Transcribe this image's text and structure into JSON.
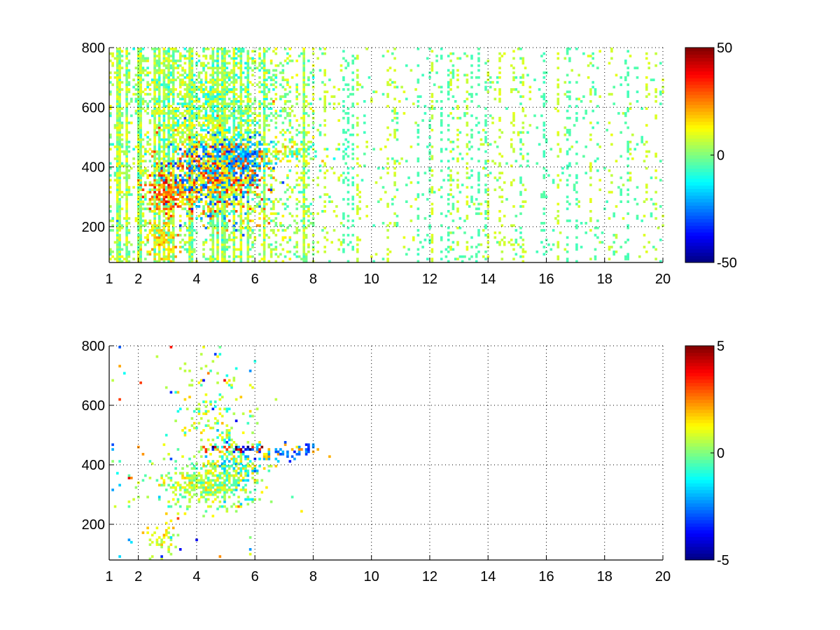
{
  "chart_data": [
    {
      "type": "heatmap",
      "title": "",
      "xlabel": "",
      "ylabel": "",
      "xlim": [
        1,
        20
      ],
      "ylim": [
        80,
        800
      ],
      "xticks": [
        1,
        2,
        4,
        6,
        8,
        10,
        12,
        14,
        16,
        18,
        20
      ],
      "xtick_labels": [
        "1",
        "2",
        "4",
        "6",
        "8",
        "10",
        "12",
        "14",
        "16",
        "18",
        "20"
      ],
      "yticks": [
        200,
        400,
        600,
        800
      ],
      "ytick_labels": [
        "200",
        "400",
        "600",
        "800"
      ],
      "grid": true,
      "colormap": "jet",
      "clim": [
        -50,
        50
      ],
      "colorbar_labels": [
        "50",
        "0",
        "-50"
      ],
      "background": {
        "density_near": 0.45,
        "density_far": 0.12,
        "falloff_x": 8,
        "value_range": [
          -8,
          14
        ]
      },
      "clusters": [
        {
          "x": 4.4,
          "y": 360,
          "sx": 1.0,
          "sy": 70,
          "density": 0.9,
          "values": [
            30,
            -28,
            12
          ]
        },
        {
          "x": 3.0,
          "y": 310,
          "sx": 0.35,
          "sy": 35,
          "density": 0.95,
          "values": [
            35,
            25
          ]
        },
        {
          "x": 5.3,
          "y": 430,
          "sx": 0.6,
          "sy": 40,
          "density": 0.9,
          "values": [
            -30,
            28,
            -20
          ]
        },
        {
          "x": 2.8,
          "y": 150,
          "sx": 0.3,
          "sy": 35,
          "density": 0.85,
          "values": [
            22,
            15
          ]
        },
        {
          "x": 7.2,
          "y": 445,
          "sx": 0.6,
          "sy": 18,
          "density": 0.7,
          "values": [
            18,
            8,
            -10
          ]
        },
        {
          "x": 4.2,
          "y": 600,
          "sx": 1.2,
          "sy": 150,
          "density": 0.5,
          "values": [
            12,
            5,
            -12
          ]
        }
      ]
    },
    {
      "type": "heatmap",
      "title": "",
      "xlabel": "",
      "ylabel": "",
      "xlim": [
        1,
        20
      ],
      "ylim": [
        80,
        800
      ],
      "xticks": [
        1,
        2,
        4,
        6,
        8,
        10,
        12,
        14,
        16,
        18,
        20
      ],
      "xtick_labels": [
        "1",
        "2",
        "4",
        "6",
        "8",
        "10",
        "12",
        "14",
        "16",
        "18",
        "20"
      ],
      "yticks": [
        200,
        400,
        600,
        800
      ],
      "ytick_labels": [
        "200",
        "400",
        "600",
        "800"
      ],
      "grid": true,
      "colormap": "jet",
      "clim": [
        -5,
        5
      ],
      "colorbar_labels": [
        "5",
        "0",
        "-5"
      ],
      "background": {
        "density_near": 0.01,
        "density_far": 0.0,
        "falloff_x": 6,
        "value_range": [
          -4,
          4
        ]
      },
      "clusters": [
        {
          "x": 4.2,
          "y": 330,
          "sx": 0.9,
          "sy": 45,
          "density": 0.75,
          "values": [
            0.8,
            1.5,
            0.3,
            -0.5
          ]
        },
        {
          "x": 5.2,
          "y": 400,
          "sx": 0.5,
          "sy": 60,
          "density": 0.6,
          "values": [
            0.5,
            -1.0,
            1.5,
            -1.8
          ]
        },
        {
          "x": 5.3,
          "y": 448,
          "sx": 0.6,
          "sy": 8,
          "density": 0.8,
          "values": [
            -4.5,
            4.5,
            -3,
            3
          ]
        },
        {
          "x": 6.9,
          "y": 435,
          "sx": 0.6,
          "sy": 14,
          "density": 0.55,
          "values": [
            -3,
            -2.5,
            2
          ]
        },
        {
          "x": 2.8,
          "y": 145,
          "sx": 0.25,
          "sy": 25,
          "density": 0.6,
          "values": [
            1.2,
            0.4,
            1.8
          ]
        },
        {
          "x": 7.8,
          "y": 450,
          "sx": 0.1,
          "sy": 10,
          "density": 0.6,
          "values": [
            -3
          ]
        },
        {
          "x": 4.3,
          "y": 560,
          "sx": 0.8,
          "sy": 120,
          "density": 0.12,
          "values": [
            0.6,
            1.5,
            -1
          ]
        }
      ]
    }
  ]
}
